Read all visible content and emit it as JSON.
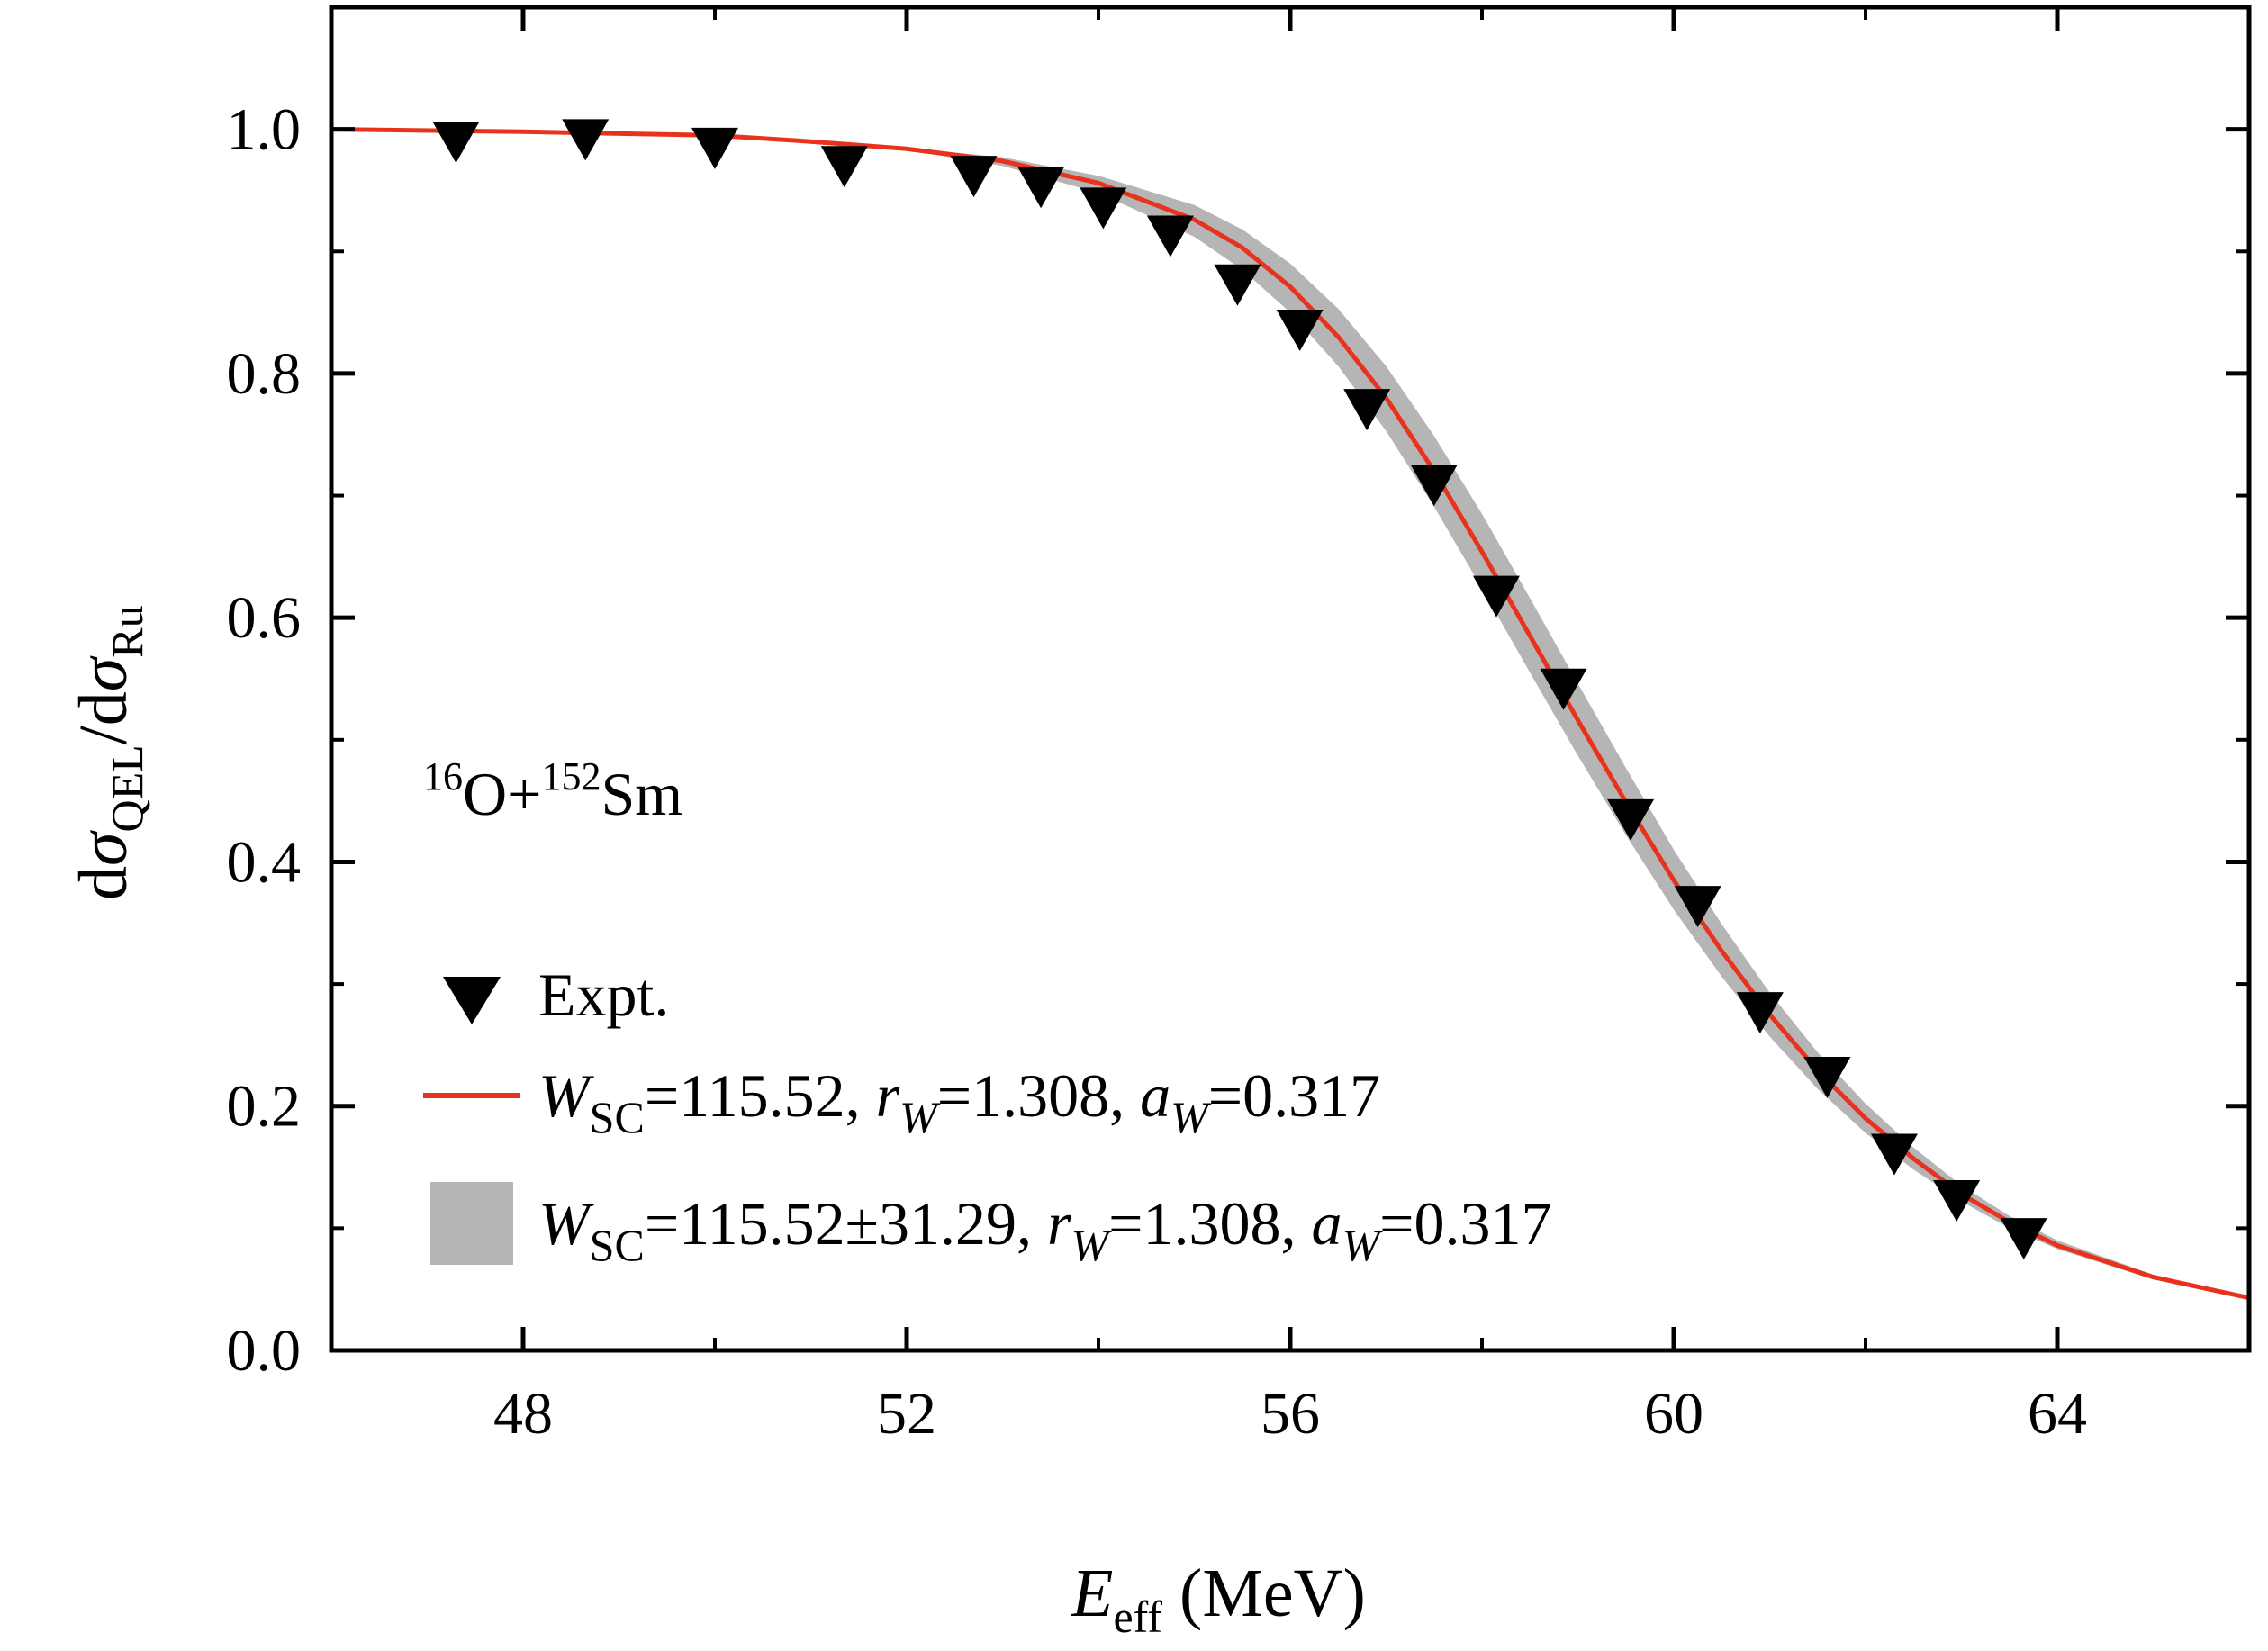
{
  "chart_data": {
    "type": "scatter",
    "title": "",
    "xlabel": {
      "main": "E",
      "sub": "eff",
      "rest": " (MeV)"
    },
    "ylabel": {
      "p1": "d",
      "sigma1": "σ",
      "sub1": "QEL",
      "mid": "/d",
      "sigma2": "σ",
      "sub2": "Ru"
    },
    "xlim": [
      46,
      66
    ],
    "ylim": [
      0.0,
      1.1
    ],
    "x_ticks": [
      48,
      52,
      56,
      60,
      64
    ],
    "y_ticks": [
      0.0,
      0.2,
      0.4,
      0.6,
      0.8,
      1.0
    ],
    "x_tick_labels": [
      "48",
      "52",
      "56",
      "60",
      "64"
    ],
    "y_tick_labels": [
      "0.0",
      "0.2",
      "0.4",
      "0.6",
      "0.8",
      "1.0"
    ],
    "grid": false,
    "legend_position": "bottom-left",
    "annotation": {
      "sup1": "16",
      "el1": "O+",
      "sup2": "152",
      "el2": "Sm"
    },
    "series": [
      {
        "name": "Expt.",
        "kind": "scatter",
        "marker": "down-triangle",
        "color": "#000000",
        "x": [
          47.3,
          48.65,
          50.0,
          51.35,
          52.7,
          53.4,
          54.05,
          54.75,
          55.45,
          56.1,
          56.8,
          57.5,
          58.15,
          58.85,
          59.55,
          60.25,
          60.9,
          61.6,
          62.3,
          62.95,
          63.65
        ],
        "y": [
          0.995,
          0.997,
          0.99,
          0.975,
          0.967,
          0.958,
          0.941,
          0.918,
          0.878,
          0.841,
          0.776,
          0.714,
          0.623,
          0.547,
          0.44,
          0.369,
          0.282,
          0.229,
          0.166,
          0.128,
          0.097
        ]
      },
      {
        "name": "W_SC=115.52, r_W=1.308, a_W=0.317",
        "kind": "line",
        "color": "#e8321e",
        "x": [
          46,
          48,
          50,
          51,
          52,
          53,
          54,
          55,
          55.5,
          56,
          56.5,
          57,
          57.5,
          58,
          58.5,
          59,
          59.5,
          60,
          60.5,
          61,
          61.5,
          62,
          62.5,
          63,
          63.5,
          64,
          65,
          66
        ],
        "y": [
          1.0,
          0.998,
          0.995,
          0.99,
          0.984,
          0.974,
          0.956,
          0.926,
          0.903,
          0.871,
          0.83,
          0.78,
          0.72,
          0.654,
          0.585,
          0.516,
          0.449,
          0.385,
          0.327,
          0.275,
          0.229,
          0.19,
          0.157,
          0.128,
          0.105,
          0.086,
          0.06,
          0.043
        ]
      },
      {
        "name": "W_SC=115.52±31.29, r_W=1.308, a_W=0.317",
        "kind": "band",
        "color": "#b5b5b5",
        "x": [
          46,
          48,
          50,
          51,
          52,
          53,
          54,
          55,
          55.5,
          56,
          56.5,
          57,
          57.5,
          58,
          58.5,
          59,
          59.5,
          60,
          60.5,
          61,
          61.5,
          62,
          62.5,
          63,
          63.5,
          64,
          65,
          66
        ],
        "y_low": [
          1.0,
          0.998,
          0.995,
          0.99,
          0.983,
          0.97,
          0.948,
          0.912,
          0.885,
          0.85,
          0.806,
          0.753,
          0.691,
          0.624,
          0.555,
          0.487,
          0.422,
          0.361,
          0.306,
          0.257,
          0.214,
          0.178,
          0.148,
          0.122,
          0.1,
          0.083,
          0.058,
          0.042
        ],
        "y_high": [
          1.0,
          0.998,
          0.995,
          0.99,
          0.985,
          0.977,
          0.962,
          0.938,
          0.918,
          0.89,
          0.853,
          0.806,
          0.749,
          0.685,
          0.616,
          0.546,
          0.477,
          0.41,
          0.349,
          0.293,
          0.244,
          0.202,
          0.166,
          0.135,
          0.11,
          0.09,
          0.062,
          0.044
        ]
      }
    ],
    "legend": [
      {
        "marker": "down-triangle",
        "text": "Expt."
      },
      {
        "marker": "line",
        "w": "W",
        "wsub": "SC",
        "t1": "=115.52, ",
        "r": "r",
        "rsub": "W",
        "t2": "=1.308, ",
        "a": "a",
        "asub": "W",
        "t3": "=0.317"
      },
      {
        "marker": "band",
        "w": "W",
        "wsub": "SC",
        "t1": "=115.52±31.29, ",
        "r": "r",
        "rsub": "W",
        "t2": "=1.308, ",
        "a": "a",
        "asub": "W",
        "t3": "=0.317"
      }
    ]
  }
}
